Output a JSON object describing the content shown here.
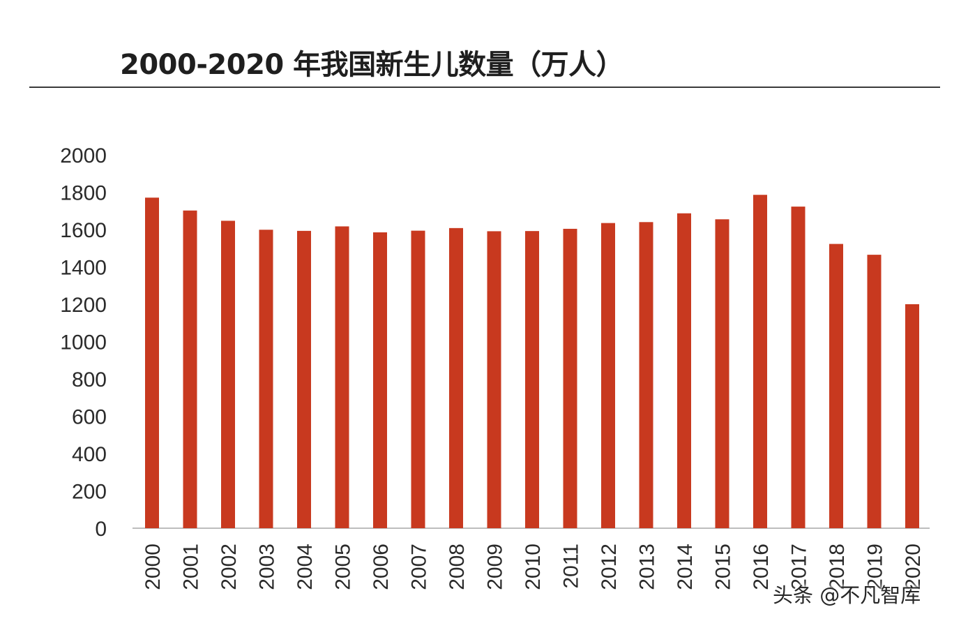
{
  "chart_data": {
    "type": "bar",
    "title": "2000-2020 年我国新生儿数量（万人）",
    "xlabel": "",
    "ylabel": "",
    "ylim": [
      0,
      2000
    ],
    "yticks": [
      "0",
      "200",
      "400",
      "600",
      "800",
      "1000",
      "1200",
      "1400",
      "1600",
      "1800",
      "2000"
    ],
    "grid": false,
    "legend": "none",
    "bar_color": "#c8391f",
    "categories": [
      "2000",
      "2001",
      "2002",
      "2003",
      "2004",
      "2005",
      "2006",
      "2007",
      "2008",
      "2009",
      "2010",
      "2011",
      "2012",
      "2013",
      "2014",
      "2015",
      "2016",
      "2017",
      "2018",
      "2019",
      "2020"
    ],
    "values": [
      1771,
      1702,
      1647,
      1599,
      1593,
      1617,
      1585,
      1594,
      1608,
      1591,
      1592,
      1604,
      1635,
      1640,
      1687,
      1655,
      1786,
      1723,
      1523,
      1465,
      1200
    ]
  },
  "watermark": "头条 @不凡智库"
}
